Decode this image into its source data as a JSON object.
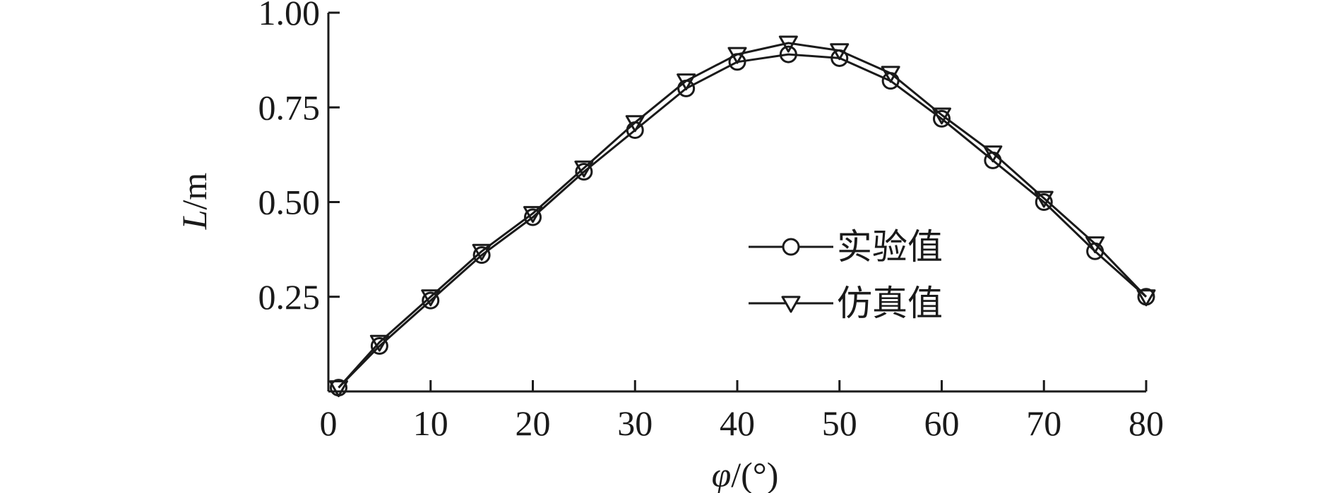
{
  "chart_data": {
    "type": "line",
    "xlabel_symbol": "φ",
    "xlabel_unit": "/(°)",
    "ylabel_symbol": "L",
    "ylabel_unit": "/m",
    "xlim": [
      0,
      80
    ],
    "ylim": [
      0,
      1.0
    ],
    "x_ticks": [
      0,
      10,
      20,
      30,
      40,
      50,
      60,
      70,
      80
    ],
    "y_ticks": [
      0.25,
      0.5,
      0.75,
      1.0
    ],
    "x_tick_labels": [
      "0",
      "10",
      "20",
      "30",
      "40",
      "50",
      "60",
      "70",
      "80"
    ],
    "y_tick_labels": [
      "0.25",
      "0.50",
      "0.75",
      "1.00"
    ],
    "grid": false,
    "legend_position": "center-right",
    "x": [
      1,
      5,
      10,
      15,
      20,
      25,
      30,
      35,
      40,
      45,
      50,
      55,
      60,
      65,
      70,
      75,
      80
    ],
    "series": [
      {
        "name": "实验值",
        "marker": "circle",
        "values": [
          0.01,
          0.12,
          0.24,
          0.36,
          0.46,
          0.58,
          0.69,
          0.8,
          0.87,
          0.89,
          0.88,
          0.82,
          0.72,
          0.61,
          0.5,
          0.37,
          0.25
        ]
      },
      {
        "name": "仿真值",
        "marker": "triangle-down",
        "values": [
          0.01,
          0.13,
          0.25,
          0.37,
          0.47,
          0.59,
          0.71,
          0.82,
          0.89,
          0.92,
          0.9,
          0.84,
          0.73,
          0.63,
          0.51,
          0.39,
          0.25
        ]
      }
    ]
  }
}
